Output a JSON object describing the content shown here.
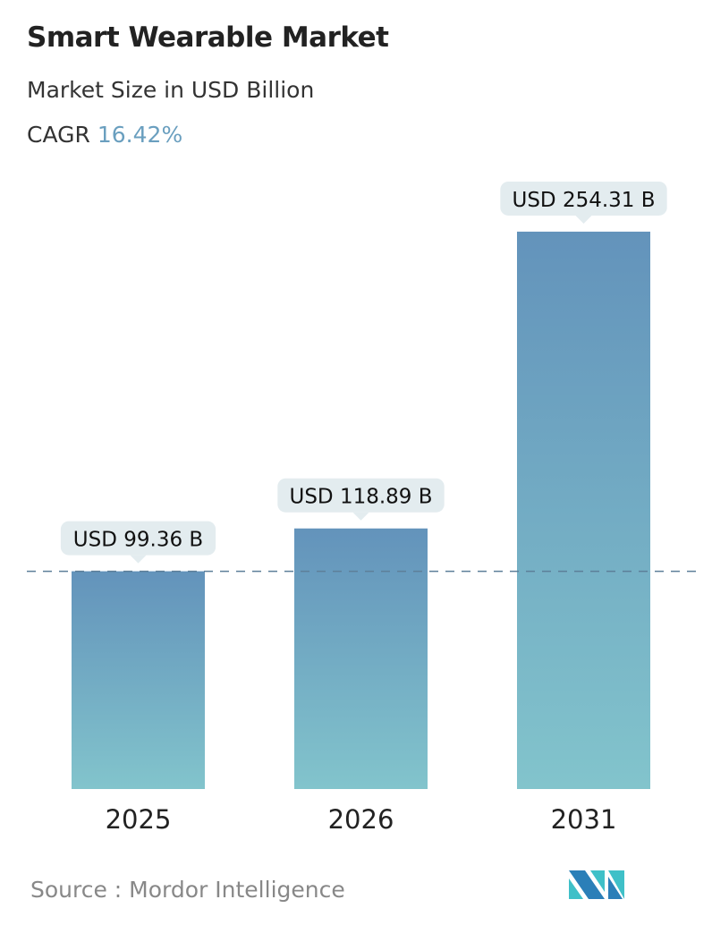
{
  "header": {
    "title": "Smart Wearable Market",
    "subtitle": "Market Size in USD Billion",
    "cagr_label": "CAGR",
    "cagr_value": "16.42%"
  },
  "chart_data": {
    "type": "bar",
    "categories": [
      "2025",
      "2026",
      "2031"
    ],
    "values": [
      99.36,
      118.89,
      254.31
    ],
    "data_labels": [
      "USD 99.36 B",
      "USD 118.89 B",
      "USD 254.31 B"
    ],
    "title": "Smart Wearable Market",
    "ylabel": "Market Size in USD Billion",
    "reference_line": 99.36,
    "colors": {
      "bar_top": "#6393bb",
      "bar_bottom": "#82c4cc",
      "label_bg": "#e3ecef",
      "dash": "#5d7f99"
    }
  },
  "footer": {
    "source": "Source :  Mordor Intelligence",
    "logo_text": "MI"
  }
}
